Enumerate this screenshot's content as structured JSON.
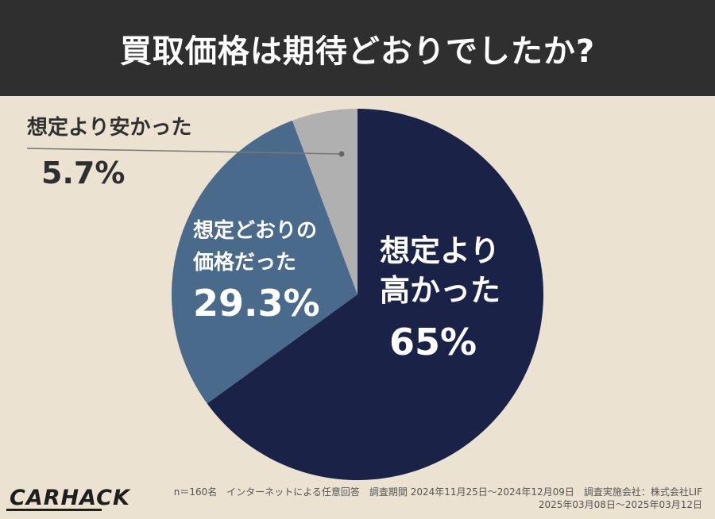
{
  "header": {
    "title": "買取価格は期待どおりでしたか?"
  },
  "chart_data": {
    "type": "pie",
    "title": "買取価格は期待どおりでしたか?",
    "slices": [
      {
        "label_lines": [
          "想定より",
          "高かった"
        ],
        "value": 65,
        "value_label": "65%",
        "color": "#1a2347"
      },
      {
        "label_lines": [
          "想定どおりの",
          "価格だった"
        ],
        "value": 29.3,
        "value_label": "29.3%",
        "color": "#4a6a8c"
      },
      {
        "label_lines": [
          "想定より安かった"
        ],
        "value": 5.7,
        "value_label": "5.7%",
        "color": "#b0b0b0"
      }
    ],
    "start": "12 o'clock",
    "direction": "clockwise"
  },
  "footer": {
    "brand": "CARHACK",
    "note_line1": "n＝160名　インターネットによる任意回答　調査期間 2024年11月25日〜2024年12月09日　調査実施会社：株式会社LIF",
    "note_line2": "2025年03月08日〜2025年03月12日"
  }
}
